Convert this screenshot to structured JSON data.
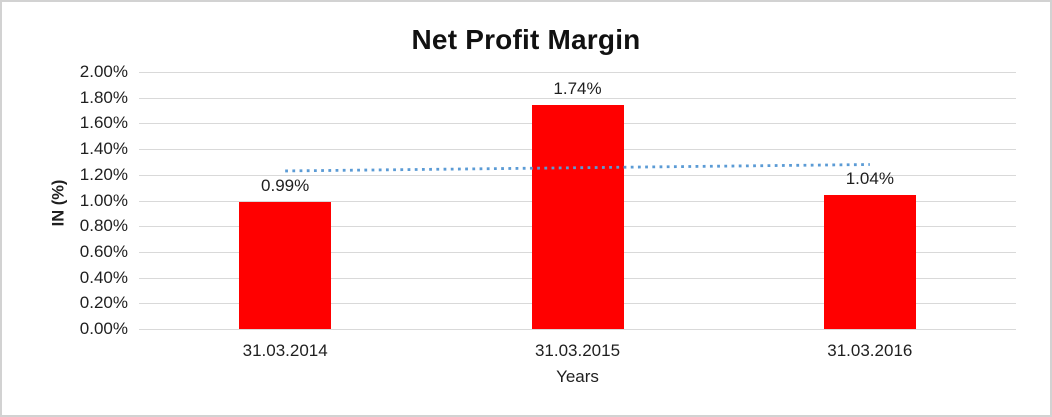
{
  "window": {
    "background": "#FFFFFF",
    "border_color": "#D2D2D2"
  },
  "chart_data": {
    "type": "bar",
    "title": "Net Profit Margin",
    "xlabel": "Years",
    "ylabel": "IN (%)",
    "categories": [
      "31.03.2014",
      "31.03.2015",
      "31.03.2016"
    ],
    "values": [
      0.99,
      1.74,
      1.04
    ],
    "data_labels": [
      "0.99%",
      "1.74%",
      "1.04%"
    ],
    "ylim": [
      0,
      2
    ],
    "ytick_step": 0.2,
    "yticks": [
      "2.00%",
      "1.80%",
      "1.60%",
      "1.40%",
      "1.20%",
      "1.00%",
      "0.80%",
      "0.60%",
      "0.40%",
      "0.20%",
      "0.00%"
    ],
    "grid": true,
    "legend": "none",
    "bar_color": "#FF0000",
    "gridline_color": "#D9D9D9",
    "text_color": "#1F1F1F",
    "trendline": {
      "type": "linear",
      "line_style": "dotted",
      "color": "#5B9BD5",
      "start_value": 1.23,
      "end_value": 1.28
    }
  }
}
